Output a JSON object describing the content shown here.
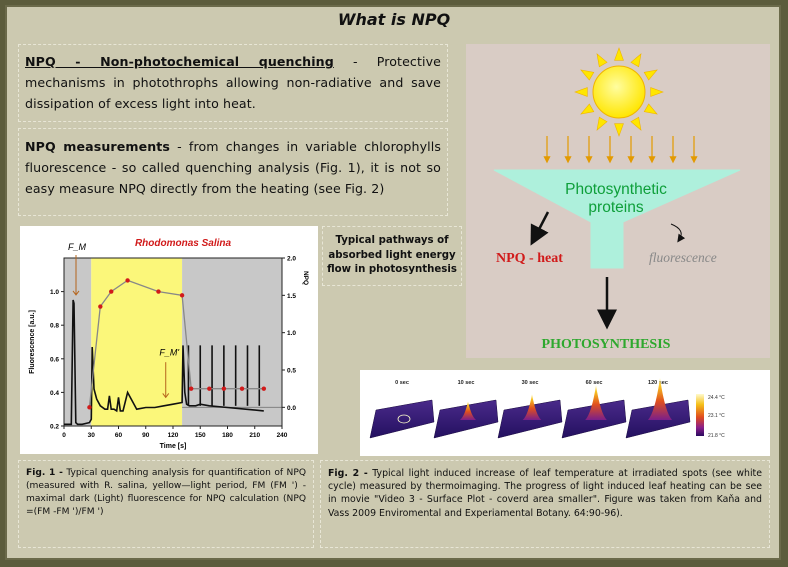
{
  "title": "What is NPQ",
  "npq_definition": {
    "term": "NPQ - Non-photochemical quenching",
    "text": " - Protective mechanisms in photothrophs allowing non-radiative and save dissipation of excess light into heat."
  },
  "npq_measurements": {
    "term": "NPQ measurements",
    "text": " - from changes in variable chlorophylls fluorescence - so called quenching analysis (Fig. 1), it is not so easy measure NPQ directly from the heating (see Fig. 2)"
  },
  "pathway_caption": "Typical pathways of absorbed light energy flow in photosynthesis",
  "diagram": {
    "funnel_label": "Photosynthetic proteins",
    "npq_heat": "NPQ - heat",
    "fluorescence": "fluorescence",
    "photosynthesis": "PHOTOSYNTHESIS"
  },
  "chart_data": {
    "type": "line",
    "title": "Rhodomonas Salina",
    "xlabel": "Time [s]",
    "ylabel": "Fluorescence [a.u.]",
    "y2label": "NPQ",
    "xlim": [
      0,
      240
    ],
    "ylim": [
      0.2,
      1.2
    ],
    "y2lim": [
      -0.25,
      2.0
    ],
    "x_ticks": [
      0,
      30,
      60,
      90,
      120,
      150,
      180,
      210,
      240
    ],
    "y_ticks": [
      0.2,
      0.4,
      0.6,
      0.8,
      1.0
    ],
    "y2_ticks": [
      0.0,
      0.5,
      1.0,
      1.5,
      2.0
    ],
    "light_period": [
      30,
      130
    ],
    "annotations": [
      "F_M",
      "F_M'"
    ],
    "series": [
      {
        "name": "Fluorescence",
        "x": [
          0,
          8,
          10,
          11,
          13,
          15,
          20,
          28,
          30,
          31,
          33,
          36,
          40,
          45,
          48,
          50,
          52,
          55,
          58,
          60,
          62,
          65,
          70,
          80,
          90,
          100,
          110,
          120,
          130,
          131,
          133,
          135,
          138,
          140,
          145,
          150,
          160,
          180,
          200,
          220
        ],
        "y": [
          0.21,
          0.21,
          0.95,
          0.93,
          0.22,
          0.21,
          0.21,
          0.22,
          0.24,
          0.67,
          0.42,
          0.36,
          0.32,
          0.3,
          0.3,
          0.38,
          0.3,
          0.3,
          0.29,
          0.37,
          0.29,
          0.29,
          0.4,
          0.3,
          0.31,
          0.31,
          0.32,
          0.33,
          0.34,
          0.68,
          0.4,
          0.33,
          0.32,
          0.32,
          0.32,
          0.33,
          0.32,
          0.31,
          0.3,
          0.29
        ]
      },
      {
        "name": "NPQ",
        "x": [
          28,
          40,
          52,
          70,
          104,
          130,
          140,
          160,
          176,
          196,
          220
        ],
        "y": [
          0.0,
          1.35,
          1.55,
          1.7,
          1.55,
          1.5,
          0.25,
          0.25,
          0.25,
          0.25,
          0.25
        ]
      }
    ]
  },
  "thermo": {
    "times": [
      "0 sec",
      "10 sec",
      "30 sec",
      "60 sec",
      "120 sec"
    ],
    "peaks": [
      0,
      0.35,
      0.55,
      0.8,
      1.0
    ],
    "scale": [
      "24.4 °C",
      "23.1 °C",
      "21.8 °C"
    ]
  },
  "fig1_caption": {
    "prefix": "Fig. 1 -",
    "text": " Typical quenching analysis for quantification of NPQ (measured with R. salina, yellow—light period, FM (FM ') - maximal dark (Light) fluorescence for NPQ calculation (NPQ =(FM -FM ')/FM ')"
  },
  "fig2_caption": {
    "prefix": "Fig. 2 -",
    "text": " Typical light induced increase of leaf temperature at irradiated spots (see white cycle) measured by thermoimaging. The progress of light induced leaf heating can be see in movie \"Video 3 - Surface Plot - coverd area smaller\". Figure was taken from Kaňa and Vass 2009 Enviromental and Experiamental Botany. 64:90-96)."
  },
  "colors": {
    "panel": "#ccc9b0",
    "sun": "#ffe600",
    "funnel": "#aef0dc",
    "npq": "#d11a1a",
    "photosynthesis": "#2ea82e",
    "light_period": "#fbf77a"
  }
}
